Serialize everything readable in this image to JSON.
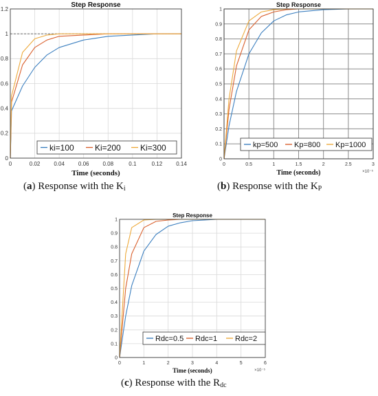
{
  "captions": [
    {
      "label": "a",
      "text": "Response with the K",
      "sub": "i"
    },
    {
      "label": "b",
      "text": "Response with the K",
      "sub": "P"
    },
    {
      "label": "c",
      "text": "Response with the R",
      "sub": "dc"
    }
  ],
  "colors": {
    "blue": "#3a7ebf",
    "red": "#d95f2b",
    "yellow": "#eda93a",
    "grid": "#d9d9d9",
    "frame": "#262626"
  },
  "chart_data": [
    {
      "type": "line",
      "title": "Step Response",
      "xlabel": "Time (seconds)",
      "ylabel": "",
      "xlim": [
        0,
        0.14
      ],
      "ylim": [
        0,
        1.2
      ],
      "xticks": [
        0,
        0.02,
        0.04,
        0.06,
        0.08,
        0.1,
        0.12,
        0.14
      ],
      "xtick_labels": [
        "0",
        "0.02",
        "0.04",
        "0.06",
        "0.08",
        "0.1",
        "0.12",
        "0.14"
      ],
      "yticks": [
        0,
        0.2,
        0.4,
        0.6,
        0.8,
        1,
        1.2
      ],
      "ytick_labels": [
        "0",
        "0.2",
        "0.4",
        "0.6",
        "0.8",
        "1",
        "1.2"
      ],
      "x_exponent": "",
      "legend_position": "bottom-right",
      "grid": "light",
      "steady_state": 1,
      "series": [
        {
          "name": "ki=100",
          "color": "#3a7ebf",
          "x": [
            0,
            0.001,
            0.01,
            0.02,
            0.03,
            0.04,
            0.06,
            0.08,
            0.1,
            0.12,
            0.14
          ],
          "y": [
            0,
            0.38,
            0.58,
            0.73,
            0.83,
            0.89,
            0.95,
            0.98,
            0.99,
            1.0,
            1.0
          ]
        },
        {
          "name": "Ki=200",
          "color": "#d95f2b",
          "x": [
            0,
            0.001,
            0.01,
            0.02,
            0.03,
            0.04,
            0.06,
            0.08,
            0.1,
            0.12,
            0.14
          ],
          "y": [
            0,
            0.45,
            0.75,
            0.89,
            0.95,
            0.98,
            0.99,
            1.0,
            1.0,
            1.0,
            1.0
          ]
        },
        {
          "name": "Ki=300",
          "color": "#eda93a",
          "x": [
            0,
            0.001,
            0.01,
            0.02,
            0.03,
            0.04,
            0.06,
            0.08,
            0.1,
            0.12,
            0.14
          ],
          "y": [
            0,
            0.5,
            0.85,
            0.96,
            0.99,
            1.0,
            1.0,
            1.0,
            1.0,
            1.0,
            1.0
          ]
        }
      ]
    },
    {
      "type": "line",
      "title": "Step Response",
      "xlabel": "Time (seconds)",
      "ylabel": "",
      "xlim": [
        0,
        3
      ],
      "ylim": [
        0,
        1
      ],
      "xticks": [
        0,
        0.5,
        1,
        1.5,
        2,
        2.5,
        3
      ],
      "xtick_labels": [
        "0",
        "0.5",
        "1",
        "1.5",
        "2",
        "2.5",
        "3"
      ],
      "yticks": [
        0,
        0.1,
        0.2,
        0.3,
        0.4,
        0.5,
        0.6,
        0.7,
        0.8,
        0.9,
        1
      ],
      "ytick_labels": [
        "0",
        "0.1",
        "0.2",
        "0.3",
        "0.4",
        "0.5",
        "0.6",
        "0.7",
        "0.8",
        "0.9",
        "1"
      ],
      "x_exponent": "×10⁻⁵",
      "legend_position": "bottom-right",
      "grid": "dark",
      "steady_state": null,
      "series": [
        {
          "name": "kp=500",
          "color": "#3a7ebf",
          "x": [
            0,
            0.1,
            0.25,
            0.5,
            0.75,
            1,
            1.25,
            1.5,
            2,
            2.5,
            3
          ],
          "y": [
            0,
            0.22,
            0.45,
            0.7,
            0.84,
            0.92,
            0.96,
            0.98,
            0.995,
            1.0,
            1.0
          ]
        },
        {
          "name": "Kp=800",
          "color": "#d95f2b",
          "x": [
            0,
            0.1,
            0.25,
            0.5,
            0.75,
            1,
            1.25,
            1.5,
            2,
            2.5,
            3
          ],
          "y": [
            0,
            0.33,
            0.62,
            0.86,
            0.95,
            0.98,
            0.995,
            1.0,
            1.0,
            1.0,
            1.0
          ]
        },
        {
          "name": "Kp=1000",
          "color": "#eda93a",
          "x": [
            0,
            0.1,
            0.25,
            0.5,
            0.75,
            1,
            1.25,
            1.5,
            2,
            2.5,
            3
          ],
          "y": [
            0,
            0.4,
            0.72,
            0.92,
            0.98,
            0.995,
            1.0,
            1.0,
            1.0,
            1.0,
            1.0
          ]
        }
      ]
    },
    {
      "type": "line",
      "title": "Step Response",
      "xlabel": "Time (seconds)",
      "ylabel": "",
      "xlim": [
        0,
        6
      ],
      "ylim": [
        0,
        1
      ],
      "xticks": [
        0,
        1,
        2,
        3,
        4,
        5,
        6
      ],
      "xtick_labels": [
        "0",
        "1",
        "2",
        "3",
        "4",
        "5",
        "6"
      ],
      "yticks": [
        0,
        0.1,
        0.2,
        0.3,
        0.4,
        0.5,
        0.6,
        0.7,
        0.8,
        0.9,
        1
      ],
      "ytick_labels": [
        "0",
        "0.1",
        "0.2",
        "0.3",
        "0.4",
        "0.5",
        "0.6",
        "0.7",
        "0.8",
        "0.9",
        "1"
      ],
      "x_exponent": "×10⁻⁵",
      "legend_position": "bottom-right",
      "grid": "light",
      "steady_state": null,
      "series": [
        {
          "name": "Rdc=0.5",
          "color": "#3a7ebf",
          "x": [
            0,
            0.25,
            0.5,
            1,
            1.5,
            2,
            2.5,
            3,
            4,
            5,
            6
          ],
          "y": [
            0,
            0.3,
            0.52,
            0.77,
            0.89,
            0.95,
            0.975,
            0.99,
            1.0,
            1.0,
            1.0
          ]
        },
        {
          "name": "Rdc=1",
          "color": "#d95f2b",
          "x": [
            0,
            0.25,
            0.5,
            1,
            1.5,
            2,
            2.5,
            3,
            4,
            5,
            6
          ],
          "y": [
            0,
            0.5,
            0.75,
            0.94,
            0.985,
            0.995,
            1.0,
            1.0,
            1.0,
            1.0,
            1.0
          ]
        },
        {
          "name": "Rdc=2",
          "color": "#eda93a",
          "x": [
            0,
            0.25,
            0.5,
            1,
            1.5,
            2,
            2.5,
            3,
            4,
            5,
            6
          ],
          "y": [
            0,
            0.75,
            0.94,
            0.995,
            1.0,
            1.0,
            1.0,
            1.0,
            1.0,
            1.0,
            1.0
          ]
        }
      ]
    }
  ]
}
